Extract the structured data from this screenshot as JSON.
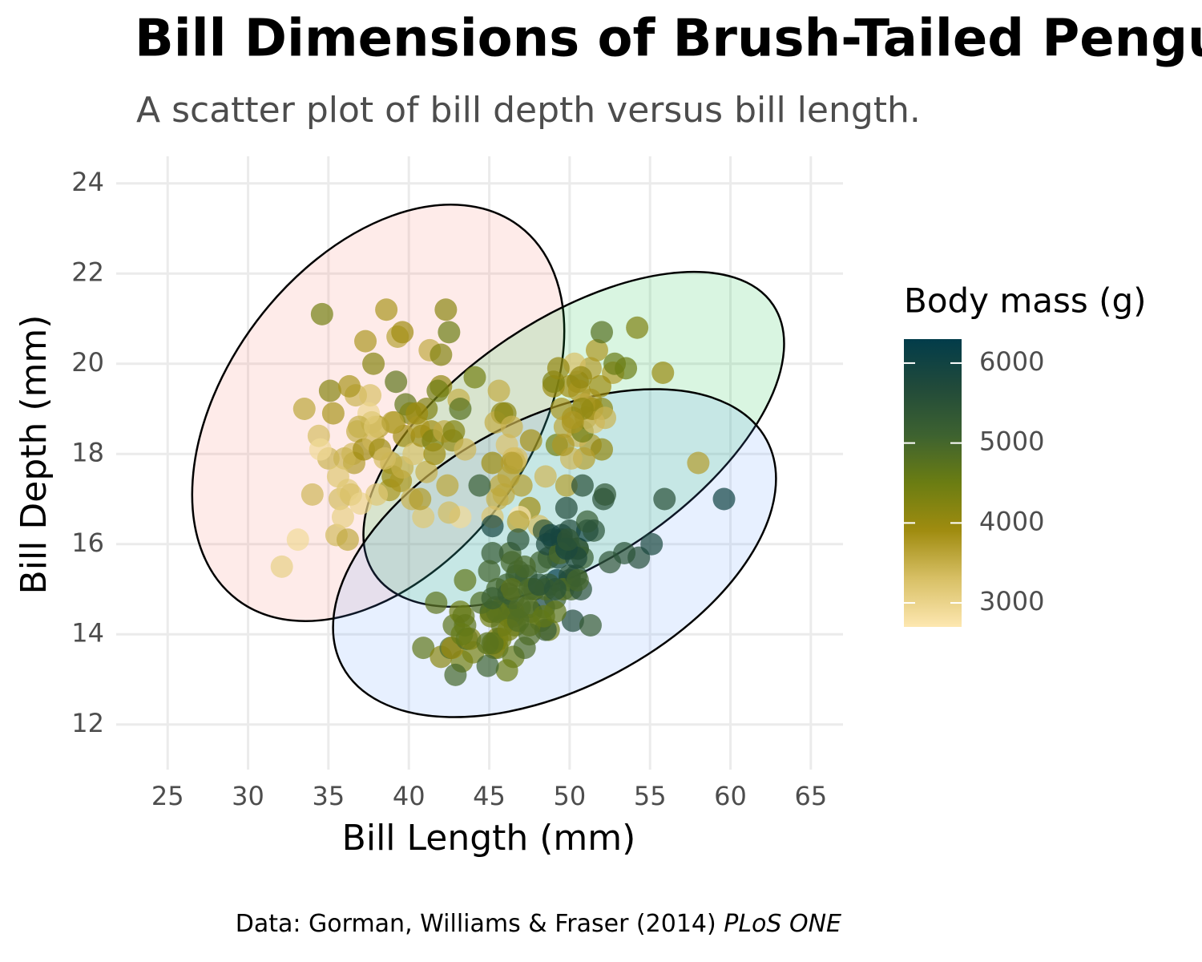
{
  "chart_data": {
    "type": "scatter",
    "title": "Bill Dimensions of Brush-Tailed Penguins",
    "subtitle": "A scatter plot of bill depth versus bill length.",
    "x_label": "Bill Length (mm)",
    "y_label": "Bill Depth (mm)",
    "caption": "Data: Gorman, Williams & Fraser (2014)",
    "caption_emphasis": "PLoS ONE",
    "xlim": [
      21.8,
      67
    ],
    "ylim": [
      11,
      24.6
    ],
    "xticks": [
      25,
      30,
      35,
      40,
      45,
      50,
      55,
      60,
      65
    ],
    "yticks": [
      12,
      14,
      16,
      18,
      20,
      22,
      24
    ],
    "grid": true,
    "color_scale": {
      "title": "Body mass (g)",
      "lim": [
        2700,
        6300
      ],
      "ticks": [
        3000,
        4000,
        5000,
        6000
      ],
      "colors": [
        "#fde7b0",
        "#d8c066",
        "#a08c10",
        "#6b7d12",
        "#3d6230",
        "#214a3a",
        "#023c4a"
      ]
    },
    "x": [
      32.1,
      33.1,
      34.6,
      33.5,
      34.4,
      35.1,
      34.0,
      35.5,
      35.0,
      35.3,
      35.7,
      35.9,
      36.2,
      36.4,
      36.5,
      36.6,
      36.7,
      36.0,
      36.2,
      36.8,
      37.0,
      37.2,
      37.3,
      37.6,
      37.7,
      37.8,
      37.8,
      38.1,
      38.2,
      38.6,
      38.8,
      38.9,
      39.0,
      39.1,
      39.2,
      39.3,
      39.5,
      39.6,
      39.7,
      39.8,
      40.1,
      40.2,
      40.3,
      40.6,
      40.8,
      40.9,
      41.1,
      41.1,
      41.3,
      41.4,
      41.5,
      41.6,
      42.0,
      42.2,
      42.3,
      42.5,
      42.7,
      42.8,
      43.1,
      43.2,
      44.1,
      45.8,
      40.5,
      38.0,
      37.5,
      36.9,
      35.6,
      34.5,
      40.7,
      41.8,
      39.6,
      38.5,
      37.9,
      39.0,
      42.0,
      36.3,
      46.5,
      50.0,
      51.3,
      45.4,
      52.7,
      45.2,
      46.1,
      51.3,
      46.0,
      51.3,
      46.6,
      51.7,
      47.0,
      52.0,
      45.9,
      50.5,
      50.3,
      58.0,
      46.4,
      49.2,
      42.4,
      48.5,
      43.2,
      50.6,
      46.7,
      52.0,
      50.5,
      49.5,
      46.4,
      52.8,
      54.2,
      42.5,
      51.0,
      49.7,
      47.5,
      47.6,
      52.0,
      46.9,
      53.5,
      49.0,
      46.2,
      50.9,
      45.5,
      50.9,
      50.8,
      50.1,
      49.0,
      51.5,
      49.8,
      48.1,
      51.4,
      45.7,
      50.7,
      52.2,
      45.2,
      49.3,
      50.2,
      45.6,
      51.9,
      46.8,
      55.8,
      43.5,
      49.6,
      50.8,
      50.2,
      46.1,
      50.0,
      48.7,
      50.0,
      47.6,
      46.5,
      45.4,
      46.7,
      43.3,
      46.8,
      40.9,
      49.0,
      45.5,
      48.4,
      45.8,
      49.3,
      42.0,
      49.2,
      46.2,
      48.7,
      50.2,
      45.1,
      46.5,
      46.3,
      42.9,
      46.1,
      47.8,
      48.2,
      50.0,
      47.3,
      42.8,
      45.1,
      59.6,
      49.1,
      48.4,
      42.6,
      44.4,
      44.0,
      48.7,
      42.7,
      49.6,
      45.3,
      49.6,
      50.5,
      43.6,
      45.5,
      50.5,
      44.9,
      45.2,
      46.6,
      48.5,
      45.1,
      50.1,
      46.5,
      45.0,
      43.8,
      45.5,
      43.2,
      50.4,
      45.3,
      46.2,
      45.7,
      54.3,
      45.8,
      49.8,
      46.2,
      49.5,
      43.5,
      50.7,
      47.7,
      46.4,
      48.2,
      46.5,
      46.4,
      48.6,
      47.5,
      51.1,
      45.2,
      45.2,
      49.1,
      52.5,
      47.4,
      50.0,
      44.9,
      50.8,
      43.4,
      51.3,
      47.5,
      52.1,
      47.5,
      52.2,
      45.5,
      49.5,
      44.5,
      50.8,
      49.4,
      46.9,
      48.4,
      51.1,
      48.5,
      55.9,
      47.2,
      49.1,
      46.8,
      41.7,
      53.4,
      43.3,
      48.1,
      50.5,
      49.8,
      43.5,
      51.5,
      46.2,
      55.1,
      48.8,
      47.2,
      46.8,
      50.4,
      45.2,
      49.9
    ],
    "values": [
      15.5,
      16.1,
      21.1,
      19.0,
      18.4,
      19.4,
      17.1,
      16.2,
      17.9,
      18.9,
      17.0,
      16.6,
      17.2,
      17.1,
      18.0,
      17.8,
      19.3,
      17.9,
      16.1,
      18.5,
      16.9,
      18.1,
      20.5,
      19.3,
      18.7,
      18.3,
      20.0,
      18.6,
      18.1,
      21.2,
      17.2,
      17.8,
      17.5,
      18.7,
      19.6,
      20.6,
      17.4,
      17.7,
      18.4,
      19.1,
      18.9,
      17.0,
      18.0,
      18.6,
      18.4,
      16.6,
      17.6,
      19.0,
      20.3,
      18.5,
      18.3,
      18.0,
      19.5,
      18.5,
      21.2,
      20.7,
      18.3,
      18.5,
      19.2,
      19.0,
      19.7,
      18.9,
      18.9,
      17.1,
      18.9,
      18.6,
      17.5,
      18.1,
      17.0,
      19.4,
      20.7,
      17.9,
      18.6,
      18.7,
      20.2,
      19.5,
      17.9,
      19.5,
      19.2,
      18.7,
      19.8,
      17.8,
      18.2,
      18.2,
      18.9,
      19.9,
      17.8,
      20.3,
      17.3,
      18.1,
      17.1,
      19.6,
      20.0,
      17.8,
      18.6,
      18.2,
      17.3,
      17.5,
      16.6,
      19.4,
      17.9,
      19.0,
      18.4,
      19.0,
      17.8,
      20.0,
      20.8,
      16.7,
      18.8,
      18.6,
      16.8,
      18.3,
      20.7,
      16.6,
      19.9,
      19.5,
      17.5,
      19.1,
      17.0,
      17.9,
      18.5,
      17.9,
      19.6,
      18.7,
      17.3,
      16.4,
      19.0,
      17.3,
      19.7,
      18.8,
      16.6,
      19.9,
      18.8,
      19.4,
      19.5,
      16.5,
      19.8,
      18.1,
      18.2,
      19.0,
      18.7,
      13.2,
      16.3,
      14.1,
      15.2,
      14.5,
      13.5,
      14.6,
      15.3,
      13.4,
      15.4,
      13.7,
      16.1,
      13.7,
      14.6,
      14.6,
      15.7,
      13.5,
      15.2,
      14.5,
      15.1,
      14.3,
      14.5,
      14.5,
      15.8,
      13.1,
      15.1,
      15.0,
      14.3,
      15.3,
      15.3,
      14.2,
      14.5,
      17.0,
      14.8,
      16.3,
      13.7,
      17.3,
      13.6,
      15.7,
      13.7,
      16.0,
      13.7,
      15.0,
      15.9,
      13.9,
      13.9,
      15.9,
      13.3,
      15.8,
      14.2,
      14.1,
      14.4,
      15.0,
      14.4,
      15.4,
      13.9,
      15.0,
      14.5,
      15.3,
      13.8,
      14.9,
      13.9,
      15.7,
      14.2,
      16.8,
      14.4,
      16.2,
      14.2,
      15.0,
      15.0,
      15.6,
      15.6,
      14.8,
      15.0,
      16.0,
      14.2,
      16.3,
      13.8,
      16.4,
      14.5,
      15.6,
      14.6,
      15.9,
      13.8,
      17.3,
      14.4,
      14.2,
      14.0,
      17.0,
      15.0,
      17.1,
      14.5,
      16.1,
      14.7,
      15.7,
      15.8,
      14.6,
      14.4,
      16.5,
      15.0,
      17.0,
      15.5,
      15.0,
      16.1,
      14.7,
      15.8,
      14.0,
      15.1,
      15.2,
      15.9,
      15.2,
      16.3,
      14.1,
      16.0,
      16.2,
      13.7,
      14.3,
      15.7,
      14.8,
      16.1
    ],
    "color_values": [
      3050,
      2900,
      4400,
      3600,
      3325,
      4200,
      3400,
      3350,
      3450,
      3800,
      3350,
      3050,
      3150,
      3300,
      3350,
      3700,
      3450,
      3450,
      3550,
      3500,
      3000,
      3900,
      3775,
      3300,
      3600,
      3400,
      4200,
      3700,
      3950,
      3800,
      3800,
      3625,
      4000,
      3750,
      4675,
      3650,
      3800,
      3500,
      3900,
      4650,
      4300,
      3450,
      3250,
      3550,
      3900,
      3200,
      3475,
      4300,
      3550,
      3875,
      4300,
      3950,
      4050,
      3550,
      4150,
      4500,
      4075,
      4250,
      3500,
      4775,
      4400,
      4100,
      3950,
      3175,
      2975,
      3500,
      3200,
      2900,
      3725,
      4450,
      3900,
      3325,
      3200,
      3650,
      4250,
      3800,
      3500,
      3900,
      3650,
      3525,
      3725,
      3950,
      3250,
      3750,
      4150,
      3700,
      3800,
      3775,
      3700,
      4050,
      3575,
      4050,
      3300,
      3700,
      3450,
      4400,
      3600,
      3400,
      2900,
      3800,
      3300,
      4150,
      3400,
      3800,
      3700,
      4550,
      4300,
      3350,
      4100,
      3600,
      3900,
      3850,
      4800,
      2700,
      4500,
      3950,
      3650,
      3550,
      3500,
      3675,
      4450,
      3400,
      4300,
      3250,
      3675,
      3325,
      3950,
      3600,
      4050,
      3450,
      3250,
      4050,
      3800,
      3525,
      3950,
      3650,
      4000,
      3400,
      3775,
      4100,
      3775,
      4500,
      5700,
      4450,
      5700,
      5400,
      4550,
      4800,
      5200,
      4400,
      5150,
      4650,
      5550,
      4650,
      5850,
      4200,
      5850,
      4150,
      6300,
      4800,
      5350,
      5700,
      5000,
      4400,
      5050,
      5000,
      5100,
      5650,
      4600,
      5550,
      5250,
      4700,
      5050,
      6050,
      5150,
      5400,
      4950,
      5250,
      4350,
      5350,
      3950,
      5700,
      4300,
      4750,
      5550,
      4900,
      4200,
      5400,
      5100,
      5300,
      4850,
      5300,
      4400,
      5000,
      4900,
      5050,
      4300,
      5000,
      4450,
      5550,
      4200,
      5300,
      4400,
      5650,
      4700,
      5700,
      4650,
      5800,
      4700,
      5550,
      4750,
      5000,
      5100,
      5200,
      4700,
      5800,
      4600,
      6000,
      4750,
      5950,
      4625,
      5450,
      4725,
      5350,
      4750,
      5600,
      4600,
      5300,
      4875,
      5550,
      4950,
      5400,
      4750,
      5650,
      4850,
      5200,
      4925,
      4875,
      4625,
      5250,
      4850,
      5600,
      4975,
      5500,
      5500,
      4700,
      5500,
      4575,
      5500,
      5000,
      5950,
      4650,
      5500,
      4375,
      5850,
      6000,
      4925,
      4850,
      5750,
      5200,
      5400
    ]
  }
}
